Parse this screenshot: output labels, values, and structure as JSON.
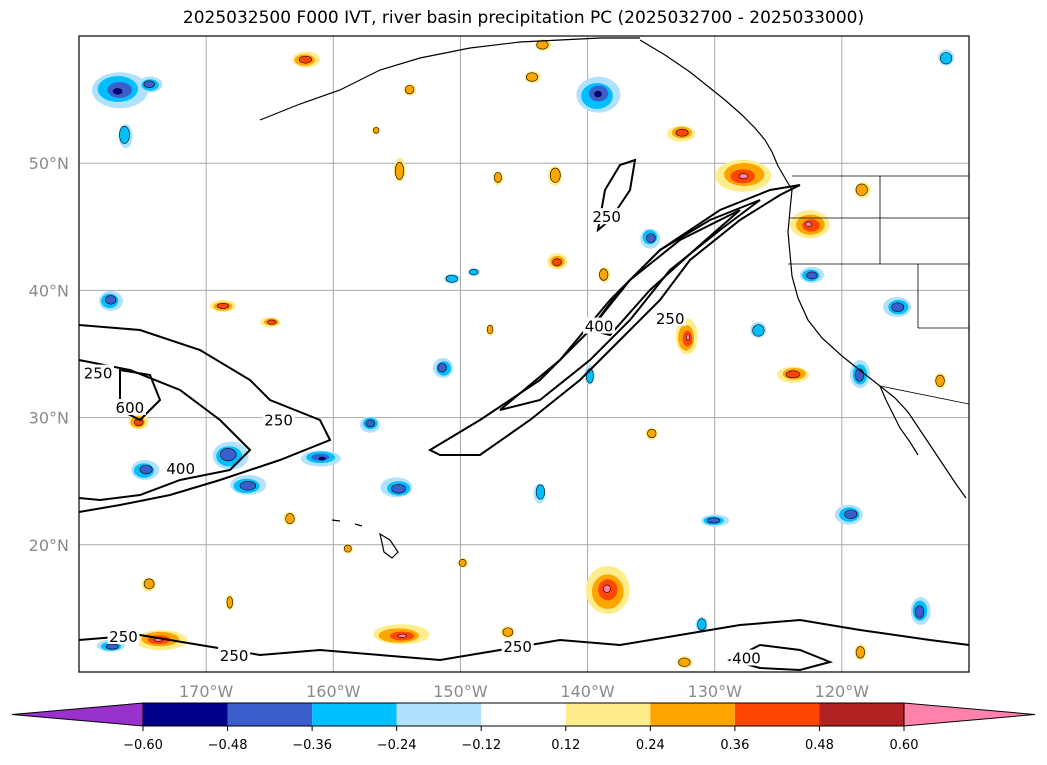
{
  "title": "2025032500 F000 IVT, river basin precipitation PC (2025032700 - 2025033000)",
  "chart_data": {
    "type": "map",
    "lon_range": [
      -180,
      -110
    ],
    "lat_range": [
      10,
      60
    ],
    "grid": true,
    "lat_ticks": [
      {
        "value": 20,
        "label": "20°N"
      },
      {
        "value": 30,
        "label": "30°N"
      },
      {
        "value": 40,
        "label": "40°N"
      },
      {
        "value": 50,
        "label": "50°N"
      }
    ],
    "lon_ticks": [
      {
        "value": -170,
        "label": "170°W"
      },
      {
        "value": -160,
        "label": "160°W"
      },
      {
        "value": -150,
        "label": "150°W"
      },
      {
        "value": -140,
        "label": "140°W"
      },
      {
        "value": -130,
        "label": "130°W"
      },
      {
        "value": -120,
        "label": "120°W"
      }
    ],
    "ivt_contour_levels": [
      250,
      400,
      600
    ],
    "contour_labels": [
      {
        "text": "250",
        "lon": -138.5,
        "lat": 45.6
      },
      {
        "text": "400",
        "lon": -139.1,
        "lat": 37.0
      },
      {
        "text": "250",
        "lon": -133.5,
        "lat": 37.6
      },
      {
        "text": "250",
        "lon": -178.5,
        "lat": 33.3
      },
      {
        "text": "600",
        "lon": -176.0,
        "lat": 30.6
      },
      {
        "text": "250",
        "lon": -164.3,
        "lat": 29.6
      },
      {
        "text": "400",
        "lon": -172.0,
        "lat": 25.8
      },
      {
        "text": "250",
        "lon": -176.5,
        "lat": 12.6
      },
      {
        "text": "250",
        "lon": -167.8,
        "lat": 11.1
      },
      {
        "text": "250",
        "lon": -145.5,
        "lat": 11.8
      },
      {
        "text": "400",
        "lon": -127.5,
        "lat": 10.9
      }
    ],
    "colorbar": {
      "extend": "both",
      "ticks": [
        "−0.60",
        "−0.48",
        "−0.36",
        "−0.24",
        "−0.12",
        "0.12",
        "0.24",
        "0.36",
        "0.48",
        "0.60"
      ],
      "colors": {
        "under": "#9932cc",
        "levels": [
          "#00008b",
          "#3a5fcd",
          "#00bfff",
          "#b0e2ff",
          "#ffffff",
          "#ffec8b",
          "#ffa500",
          "#ff4500",
          "#b22222"
        ],
        "over": "#ff82ab"
      }
    }
  }
}
